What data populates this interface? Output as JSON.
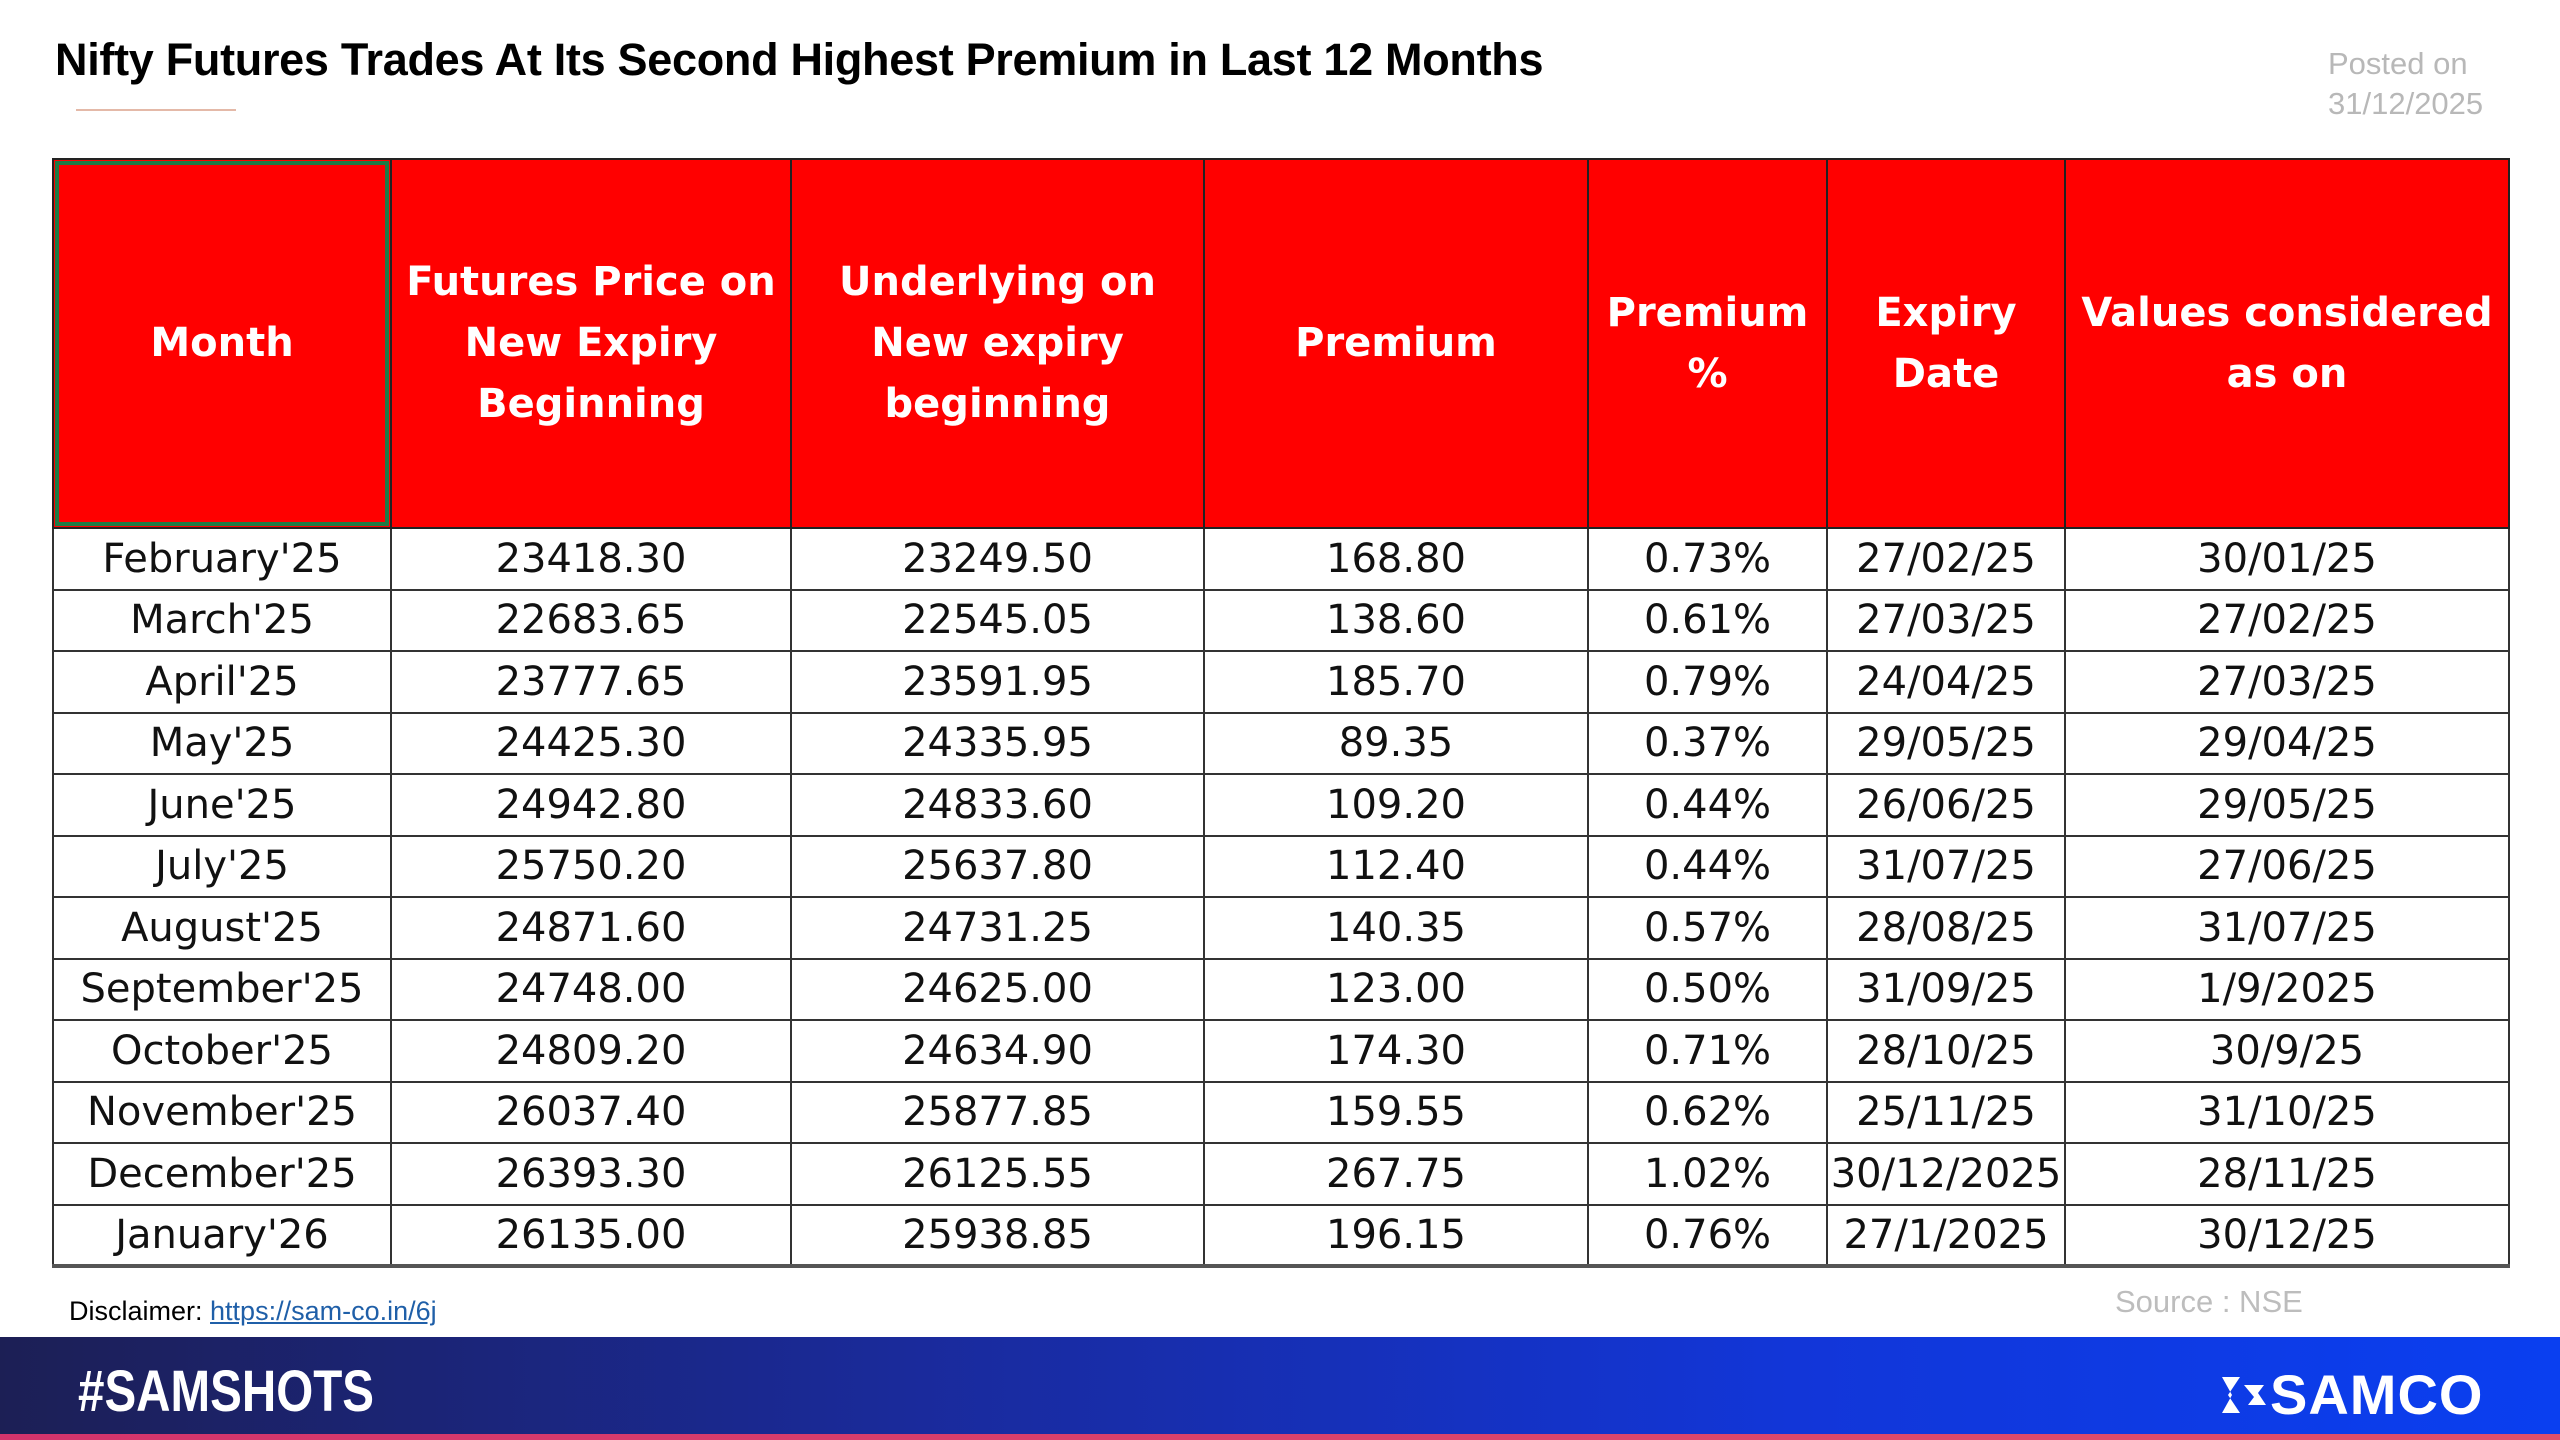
{
  "title": "Nifty Futures Trades At Its Second Highest Premium in Last 12 Months",
  "posted": {
    "label": "Posted on",
    "date": "31/12/2025"
  },
  "table": {
    "headers": [
      "Month",
      "Futures Price on New Expiry Beginning",
      "Underlying on New expiry beginning",
      "Premium",
      "Premium %",
      "Expiry Date",
      "Values considered as on"
    ],
    "rows": [
      [
        "February'25",
        "23418.30",
        "23249.50",
        "168.80",
        "0.73%",
        "27/02/25",
        "30/01/25"
      ],
      [
        "March'25",
        "22683.65",
        "22545.05",
        "138.60",
        "0.61%",
        "27/03/25",
        "27/02/25"
      ],
      [
        "April'25",
        "23777.65",
        "23591.95",
        "185.70",
        "0.79%",
        "24/04/25",
        "27/03/25"
      ],
      [
        "May'25",
        "24425.30",
        "24335.95",
        "89.35",
        "0.37%",
        "29/05/25",
        "29/04/25"
      ],
      [
        "June'25",
        "24942.80",
        "24833.60",
        "109.20",
        "0.44%",
        "26/06/25",
        "29/05/25"
      ],
      [
        "July'25",
        "25750.20",
        "25637.80",
        "112.40",
        "0.44%",
        "31/07/25",
        "27/06/25"
      ],
      [
        "August'25",
        "24871.60",
        "24731.25",
        "140.35",
        "0.57%",
        "28/08/25",
        "31/07/25"
      ],
      [
        "September'25",
        "24748.00",
        "24625.00",
        "123.00",
        "0.50%",
        "31/09/25",
        "1/9/2025"
      ],
      [
        "October'25",
        "24809.20",
        "24634.90",
        "174.30",
        "0.71%",
        "28/10/25",
        "30/9/25"
      ],
      [
        "November'25",
        "26037.40",
        "25877.85",
        "159.55",
        "0.62%",
        "25/11/25",
        "31/10/25"
      ],
      [
        "December'25",
        "26393.30",
        "26125.55",
        "267.75",
        "1.02%",
        "30/12/2025",
        "28/11/25"
      ],
      [
        "January'26",
        "26135.00",
        "25938.85",
        "196.15",
        "0.76%",
        "27/1/2025",
        "30/12/25"
      ]
    ]
  },
  "footer": {
    "disclaimer_label": "Disclaimer:",
    "disclaimer_link": "https://sam-co.in/6j",
    "source": "Source : NSE",
    "hashtag": "#SAMSHOTS",
    "brand": "SAMCO"
  },
  "colors": {
    "header_bg": "#ff0000",
    "banner_start": "#1c1f55",
    "banner_end": "#0a3ff0"
  }
}
